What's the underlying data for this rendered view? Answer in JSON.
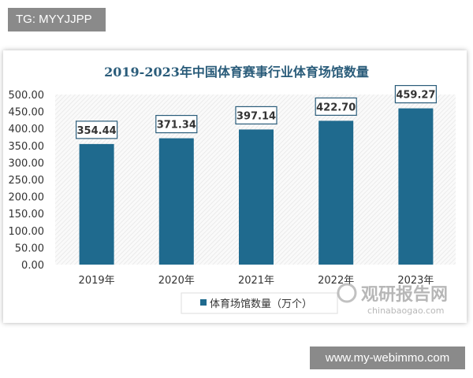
{
  "watermark_top": "TG: MYYJJPP",
  "watermark_bottom": "www.my-webimmo.com",
  "logo": {
    "name": "观研报告网",
    "url": "chinabaogao.com"
  },
  "colors": {
    "bar": "#1f6a8e",
    "title": "#2a5c7a"
  },
  "chart_data": {
    "type": "bar",
    "title": "2019-2023年中国体育赛事行业体育场馆数量",
    "categories": [
      "2019年",
      "2020年",
      "2021年",
      "2022年",
      "2023年"
    ],
    "series": [
      {
        "name": "体育场馆数量（万个）",
        "values": [
          354.44,
          371.34,
          397.14,
          422.7,
          459.27
        ]
      }
    ],
    "data_labels": [
      "354.44",
      "371.34",
      "397.14",
      "422.70",
      "459.27"
    ],
    "yticks": [
      "0.00",
      "50.00",
      "100.00",
      "150.00",
      "200.00",
      "250.00",
      "300.00",
      "350.00",
      "400.00",
      "450.00",
      "500.00"
    ],
    "ylim": [
      0,
      500
    ],
    "grid": false,
    "legend": "bottom"
  }
}
